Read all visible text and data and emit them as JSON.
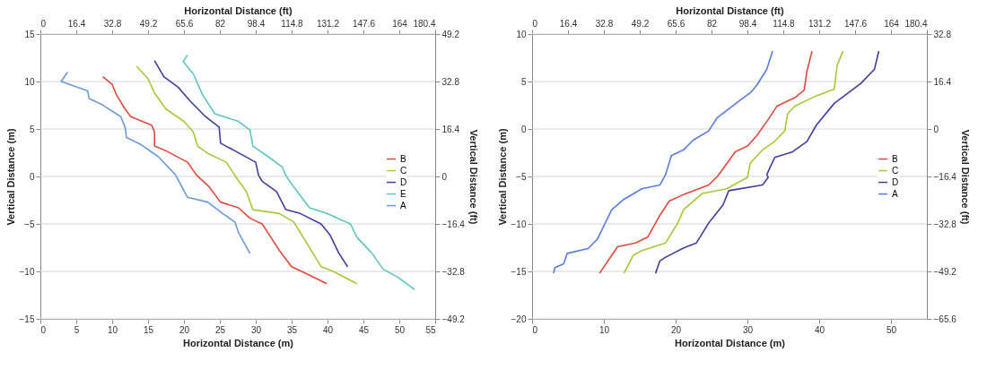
{
  "chart_data": [
    {
      "type": "line",
      "xlabel": "Horizontal Distance (m)",
      "ylabel": "Vertical Distance (m)",
      "x2label": "Horizontal Distance (ft)",
      "y2label": "Vertical Distance (ft)",
      "xlim": [
        0,
        55
      ],
      "xticks": [
        0,
        5,
        10,
        15,
        20,
        25,
        30,
        35,
        40,
        45,
        50,
        55
      ],
      "ylim": [
        -15,
        15
      ],
      "yticks": [
        -15,
        -10,
        -5,
        0,
        5,
        10,
        15
      ],
      "x2lim": [
        0,
        180.4
      ],
      "x2ticks": [
        0,
        16.4,
        32.8,
        49.2,
        65.6,
        82,
        98.4,
        114.8,
        131.2,
        147.6,
        164,
        180.4
      ],
      "y2lim": [
        -49.2,
        49.2
      ],
      "y2ticks": [
        -49.2,
        -32.8,
        -16.4,
        0,
        16.4,
        32.8,
        49.2
      ],
      "grid": "y",
      "legend": "right",
      "series": [
        {
          "name": "B",
          "color": "#e04a3a",
          "x": [
            8.7,
            10.0,
            10.6,
            11.8,
            12.6,
            15.5,
            15.9,
            15.9,
            17.5,
            20.5,
            21.8,
            23.4,
            25.1,
            27.6,
            29.2,
            30.9,
            33.3,
            35.0,
            37.5,
            39.9
          ],
          "values": [
            10.5,
            9.7,
            8.6,
            7.1,
            6.3,
            5.4,
            4.7,
            3.2,
            2.7,
            1.5,
            0.1,
            -1.0,
            -2.7,
            -3.3,
            -4.4,
            -5.0,
            -7.8,
            -9.5,
            -10.4,
            -11.3
          ]
        },
        {
          "name": "C",
          "color": "#a6c93a",
          "x": [
            13.4,
            15.0,
            15.9,
            17.5,
            20.0,
            21.3,
            21.9,
            23.4,
            25.9,
            27.1,
            28.7,
            29.6,
            33.3,
            35.3,
            36.2,
            39.1,
            40.8,
            44.1
          ],
          "values": [
            11.6,
            10.3,
            8.8,
            7.1,
            5.8,
            4.7,
            3.2,
            2.4,
            1.5,
            0.1,
            -1.6,
            -3.5,
            -3.9,
            -4.8,
            -5.9,
            -9.5,
            -10.0,
            -11.3
          ]
        },
        {
          "name": "D",
          "color": "#3f3fa0",
          "x": [
            15.9,
            17.2,
            19.2,
            20.8,
            23.0,
            24.9,
            25.1,
            27.1,
            30.0,
            30.4,
            30.9,
            32.9,
            34.2,
            36.2,
            39.1,
            40.3,
            41.6,
            42.8
          ],
          "values": [
            12.2,
            10.5,
            9.4,
            8.0,
            6.3,
            5.2,
            3.5,
            2.7,
            1.5,
            0.1,
            -0.5,
            -1.6,
            -3.5,
            -3.9,
            -5.0,
            -6.1,
            -8.1,
            -9.5
          ]
        },
        {
          "name": "E",
          "color": "#5fc4c4",
          "x": [
            20.5,
            19.9,
            21.3,
            22.6,
            24.3,
            27.6,
            29.2,
            29.6,
            31.7,
            33.7,
            34.2,
            35.0,
            37.5,
            39.9,
            43.2,
            44.1,
            46.2,
            47.8,
            49.8,
            52.1
          ],
          "values": [
            12.8,
            12.1,
            10.8,
            8.6,
            6.6,
            5.8,
            4.9,
            3.2,
            2.1,
            1.0,
            0.1,
            -0.8,
            -3.3,
            -3.9,
            -5.0,
            -6.4,
            -8.1,
            -9.8,
            -10.6,
            -11.9
          ]
        },
        {
          "name": "A",
          "color": "#6a9bd8",
          "x": [
            3.8,
            2.9,
            4.4,
            6.6,
            6.8,
            8.5,
            11.2,
            11.8,
            12.0,
            13.9,
            16.4,
            18.8,
            20.5,
            23.3,
            25.4,
            27.1,
            27.6,
            29.2
          ],
          "values": [
            11.0,
            10.0,
            9.6,
            9.0,
            8.2,
            7.6,
            6.3,
            5.2,
            4.1,
            3.4,
            2.1,
            0.2,
            -2.2,
            -2.7,
            -3.9,
            -4.8,
            -5.9,
            -8.1
          ]
        }
      ]
    },
    {
      "type": "line",
      "xlabel": "Horizontal Distance (m)",
      "ylabel": "Vertical Distance (m)",
      "x2label": "Horizontal Distance (ft)",
      "y2label": "Vertical Distance (ft)",
      "xlim": [
        0,
        55
      ],
      "xticks": [
        0,
        10,
        20,
        30,
        40,
        50
      ],
      "ylim": [
        -20,
        10
      ],
      "yticks": [
        -20,
        -15,
        -10,
        -5,
        0,
        5,
        10
      ],
      "x2lim": [
        0,
        180.4
      ],
      "x2ticks": [
        0,
        16.4,
        32.8,
        49.2,
        65.6,
        82,
        98.4,
        114.8,
        131.2,
        147.6,
        164,
        180.4
      ],
      "y2lim": [
        -65.6,
        32.8
      ],
      "y2ticks": [
        -65.6,
        -49.2,
        -32.8,
        -16.4,
        0,
        16.4,
        32.8
      ],
      "grid": "y",
      "legend": "right",
      "series": [
        {
          "name": "B",
          "color": "#e04a3a",
          "x": [
            39.0,
            38.3,
            37.9,
            36.6,
            34.1,
            32.9,
            31.3,
            30.0,
            28.3,
            26.3,
            25.8,
            24.6,
            21.1,
            19.1,
            17.8,
            16.1,
            14.4,
            11.9,
            11.1,
            9.4
          ],
          "values": [
            8.2,
            6.1,
            4.1,
            3.3,
            2.4,
            1.0,
            -0.7,
            -1.8,
            -2.4,
            -4.5,
            -5.0,
            -5.9,
            -6.9,
            -7.6,
            -9.1,
            -11.4,
            -12.0,
            -12.4,
            -13.3,
            -15.2
          ]
        },
        {
          "name": "C",
          "color": "#a6c93a",
          "x": [
            43.3,
            42.5,
            42.1,
            39.6,
            36.6,
            35.6,
            35.2,
            33.8,
            32.1,
            30.4,
            30.0,
            27.1,
            23.7,
            21.1,
            20.3,
            18.6,
            15.3,
            14.1,
            12.8
          ],
          "values": [
            8.2,
            6.7,
            4.2,
            3.5,
            2.4,
            1.6,
            -0.2,
            -1.3,
            -2.2,
            -3.6,
            -5.1,
            -6.3,
            -6.8,
            -8.5,
            -9.9,
            -12.0,
            -12.8,
            -13.3,
            -15.2
          ]
        },
        {
          "name": "D",
          "color": "#3f3fa0",
          "x": [
            48.3,
            47.7,
            45.8,
            42.1,
            39.6,
            38.3,
            36.3,
            33.8,
            32.7,
            32.9,
            32.1,
            27.4,
            26.6,
            24.6,
            22.9,
            21.2,
            18.6,
            17.8,
            17.2
          ],
          "values": [
            8.2,
            6.3,
            4.8,
            2.7,
            0.4,
            -1.3,
            -2.4,
            -3.0,
            -4.8,
            -5.1,
            -5.9,
            -6.5,
            -8.0,
            -9.9,
            -12.0,
            -12.5,
            -13.5,
            -13.9,
            -15.2
          ]
        },
        {
          "name": "A",
          "color": "#5a7be0",
          "x": [
            33.5,
            32.7,
            31.3,
            30.4,
            29.1,
            27.4,
            25.8,
            24.6,
            22.4,
            21.1,
            19.4,
            18.6,
            17.8,
            15.3,
            12.8,
            11.1,
            9.1,
            7.8,
            4.9,
            4.4,
            3.2,
            3.0
          ],
          "values": [
            8.2,
            6.3,
            4.6,
            3.8,
            3.1,
            2.1,
            1.2,
            -0.2,
            -1.2,
            -2.2,
            -2.8,
            -4.8,
            -5.9,
            -6.3,
            -7.4,
            -8.5,
            -11.6,
            -12.6,
            -13.1,
            -14.2,
            -14.6,
            -15.2
          ]
        }
      ]
    }
  ]
}
